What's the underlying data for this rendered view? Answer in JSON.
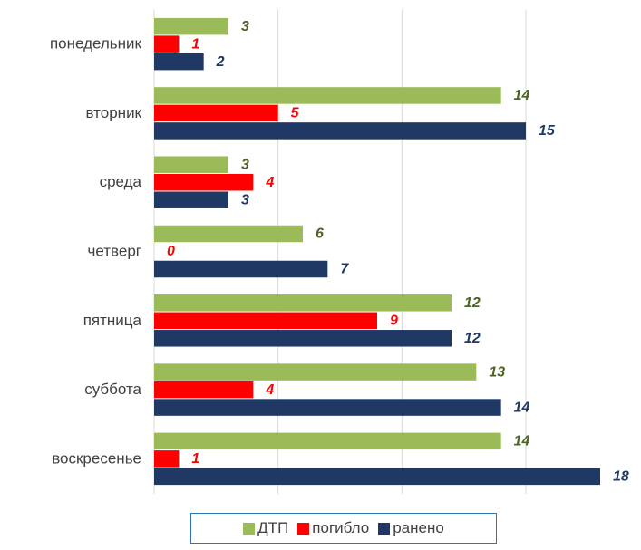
{
  "chart_data": {
    "type": "hbar",
    "categories": [
      "понедельник",
      "вторник",
      "среда",
      "четверг",
      "пятница",
      "суббота",
      "воскресенье"
    ],
    "series": [
      {
        "name": "ДТП",
        "color": "#9bbb59",
        "label_color": "#4f6228",
        "values": [
          3,
          14,
          3,
          6,
          12,
          13,
          14
        ]
      },
      {
        "name": "погибло",
        "color": "#ff0000",
        "label_color": "#ff0000",
        "values": [
          1,
          5,
          4,
          0,
          9,
          4,
          1
        ]
      },
      {
        "name": "ранено",
        "color": "#1f3864",
        "label_color": "#1f3864",
        "values": [
          2,
          15,
          3,
          7,
          12,
          14,
          18
        ]
      }
    ],
    "xlim": [
      0,
      18
    ],
    "xticks": [
      0,
      5,
      10,
      15
    ],
    "grid": true,
    "legend": "bottom"
  }
}
